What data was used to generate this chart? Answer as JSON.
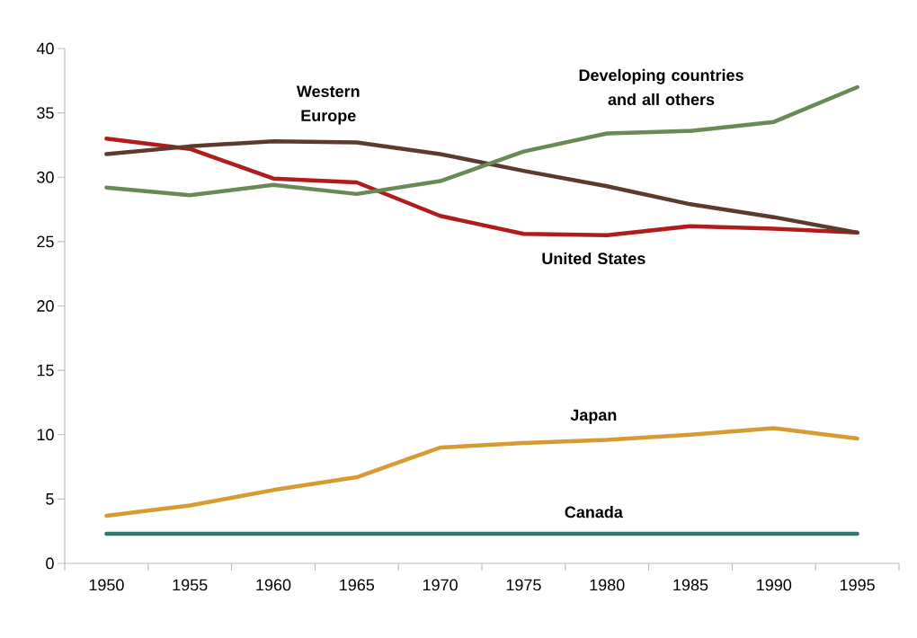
{
  "chart_data": {
    "type": "line",
    "categories": [
      "1950",
      "1955",
      "1960",
      "1965",
      "1970",
      "1975",
      "1980",
      "1985",
      "1990",
      "1995"
    ],
    "ylim": [
      0,
      40
    ],
    "yticks": [
      0,
      5,
      10,
      15,
      20,
      25,
      30,
      35,
      40
    ],
    "series": [
      {
        "name": "United States",
        "color": "#b01c1c",
        "values": [
          33.0,
          32.2,
          29.9,
          29.6,
          27.0,
          25.6,
          25.5,
          26.2,
          26.0,
          25.7
        ]
      },
      {
        "name": "Western Europe",
        "color": "#5c3a2e",
        "values": [
          31.8,
          32.4,
          32.8,
          32.7,
          31.8,
          30.5,
          29.3,
          27.9,
          26.9,
          25.7
        ]
      },
      {
        "name": "Developing countries and all others",
        "color": "#6a8a55",
        "values": [
          29.2,
          28.6,
          29.4,
          28.7,
          29.7,
          32.0,
          33.4,
          33.6,
          34.3,
          37.0
        ]
      },
      {
        "name": "Japan",
        "color": "#d69c32",
        "values": [
          3.7,
          4.5,
          5.7,
          6.7,
          9.0,
          9.35,
          9.6,
          10.0,
          10.5,
          9.7
        ]
      },
      {
        "name": "Canada",
        "color": "#2e7a72",
        "values": [
          2.3,
          2.3,
          2.3,
          2.3,
          2.3,
          2.3,
          2.3,
          2.3,
          2.3,
          2.3
        ]
      }
    ]
  }
}
